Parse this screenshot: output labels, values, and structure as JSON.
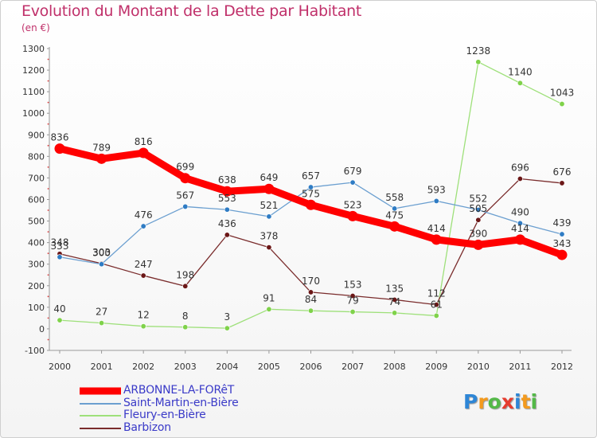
{
  "title": "Evolution du Montant de la Dette par Habitant",
  "subtitle": "(en €)",
  "logo": {
    "text": "Proxiti",
    "letter_colors": [
      "#2e86d6",
      "#f39a1e",
      "#54b948",
      "#e63c2e",
      "#2e86d6",
      "#f39a1e",
      "#54b948"
    ]
  },
  "chart_data": {
    "type": "line",
    "title": "Evolution du Montant de la Dette par Habitant",
    "ylabel": "(en €)",
    "x": [
      "2000",
      "2001",
      "2002",
      "2003",
      "2004",
      "2005",
      "2006",
      "2007",
      "2008",
      "2009",
      "2010",
      "2011",
      "2012"
    ],
    "ylim": [
      -100,
      1300
    ],
    "yticks": [
      "-100",
      "0",
      "100",
      "200",
      "300",
      "400",
      "500",
      "600",
      "700",
      "800",
      "900",
      "1000",
      "1100",
      "1200",
      "1300"
    ],
    "grid": false,
    "legend_position": "bottom-left",
    "series": [
      {
        "name": "ARBONNE-LA-FORêT",
        "color": "#ff0000",
        "marker_color": "#ff0000",
        "values": [
          836,
          789,
          816,
          699,
          638,
          649,
          575,
          523,
          475,
          414,
          390,
          414,
          343
        ]
      },
      {
        "name": "Saint-Martin-en-Bière",
        "color": "#6b9fd0",
        "marker_color": "#2f7cc4",
        "values": [
          333,
          300,
          476,
          567,
          553,
          521,
          657,
          679,
          558,
          593,
          552,
          490,
          439
        ]
      },
      {
        "name": "Fleury-en-Bière",
        "color": "#9ee07a",
        "marker_color": "#7fd24a",
        "values": [
          40,
          27,
          12,
          8,
          3,
          91,
          84,
          79,
          74,
          61,
          1238,
          1140,
          1043
        ]
      },
      {
        "name": "Barbizon",
        "color": "#7a2c2c",
        "marker_color": "#6b1717",
        "values": [
          348,
          303,
          247,
          198,
          436,
          378,
          170,
          153,
          135,
          112,
          505,
          696,
          676
        ]
      }
    ]
  }
}
